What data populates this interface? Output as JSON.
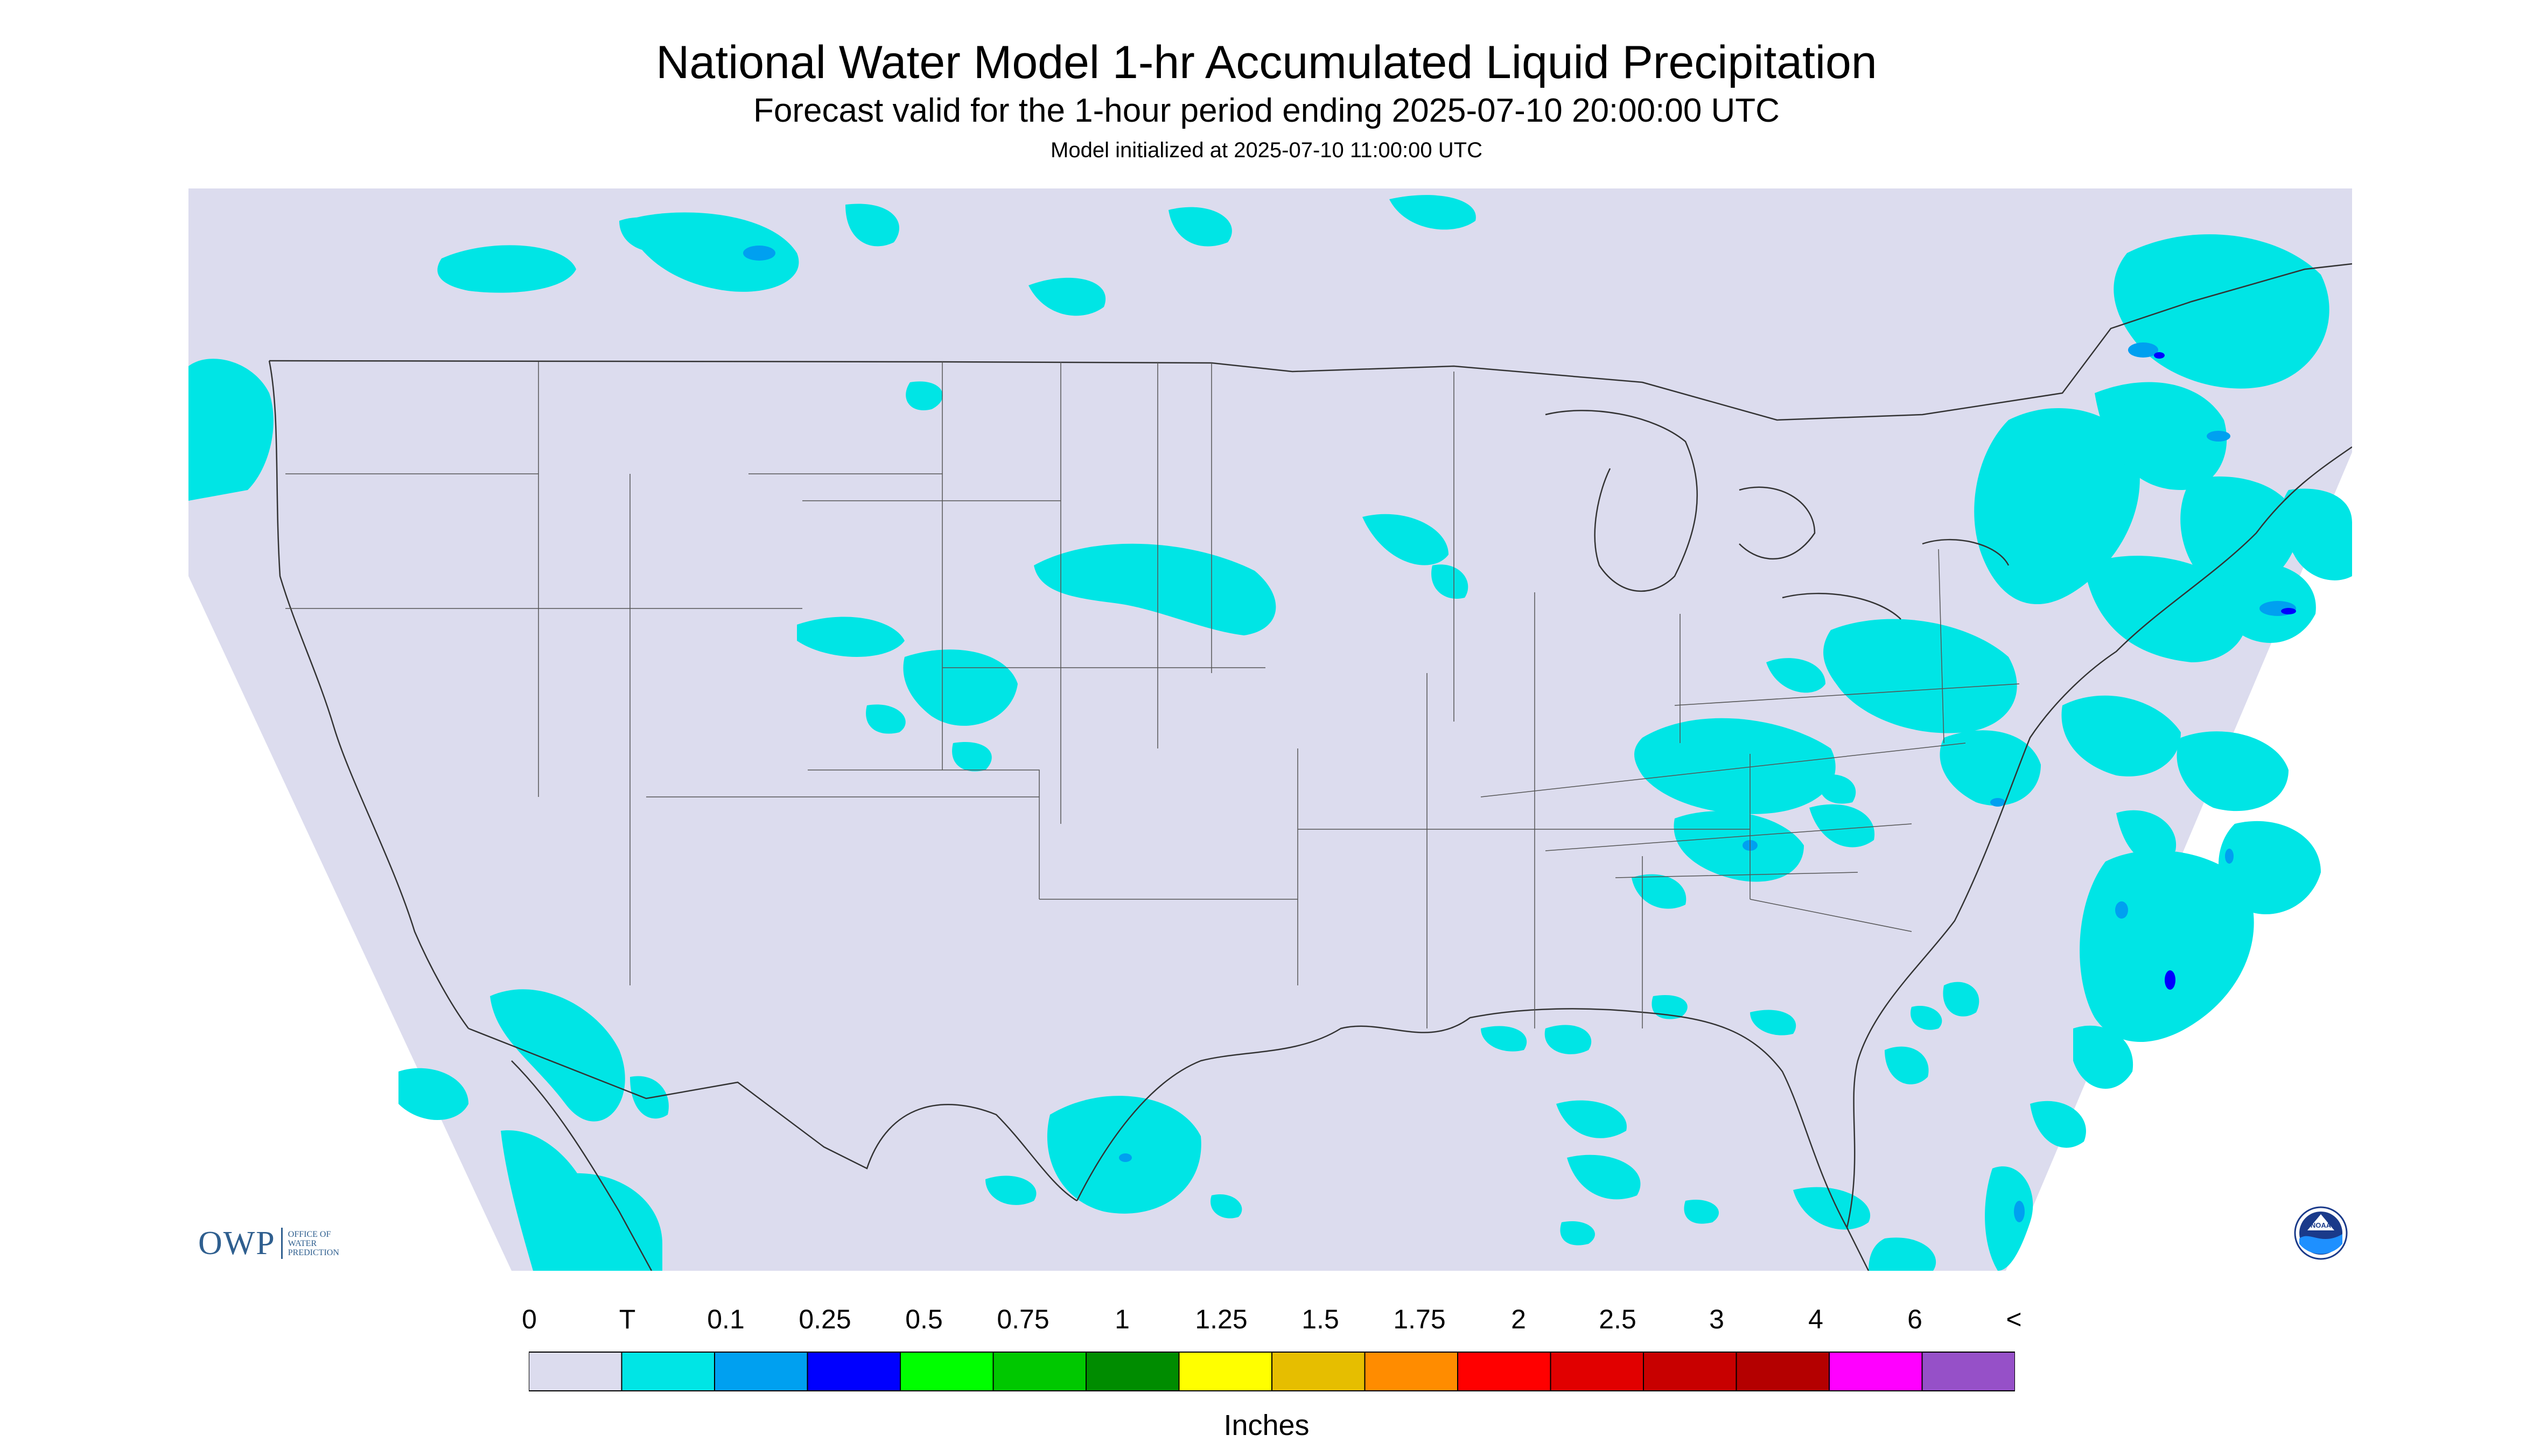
{
  "header": {
    "title": "National Water Model 1-hr Accumulated Liquid Precipitation",
    "subtitle": "Forecast valid for the 1-hour period ending 2025-07-10 20:00:00 UTC",
    "init_line": "Model initialized at 2025-07-10 11:00:00 UTC"
  },
  "colors": {
    "background": "#dcdcee",
    "trace": "#00e5e5",
    "precip_blue": "#0000e6",
    "border": "#333333"
  },
  "legend": {
    "tick_labels": [
      "0",
      "T",
      "0.1",
      "0.25",
      "0.5",
      "0.75",
      "1",
      "1.25",
      "1.5",
      "1.75",
      "2",
      "2.5",
      "3",
      "4",
      "6",
      "<"
    ],
    "colors": [
      "#dcdcee",
      "#00e5e5",
      "#00a0f0",
      "#0000ff",
      "#00ff00",
      "#00c800",
      "#008c00",
      "#ffff00",
      "#e6be00",
      "#ff8c00",
      "#ff0000",
      "#e10000",
      "#c80000",
      "#b40000",
      "#ff00ff",
      "#9650c8"
    ],
    "units": "Inches"
  },
  "logos": {
    "owp": {
      "abbr": "OWP",
      "line1": "OFFICE OF",
      "line2": "WATER",
      "line3": "PREDICTION"
    },
    "noaa": {
      "text": "NOAA"
    }
  }
}
